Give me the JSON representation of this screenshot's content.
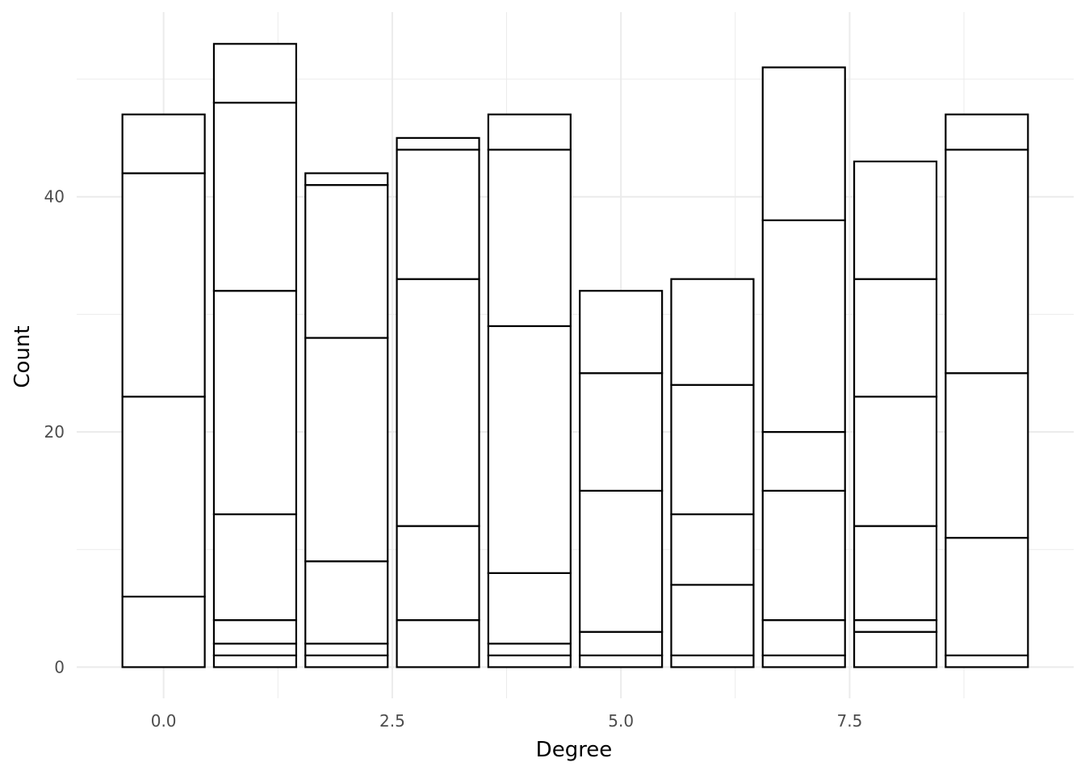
{
  "chart_data": {
    "type": "bar",
    "stacked": true,
    "title": "",
    "xlabel": "Degree",
    "ylabel": "Count",
    "x": [
      0,
      1,
      2,
      3,
      4,
      5,
      6,
      7,
      8,
      9
    ],
    "stack_boundaries": [
      [
        6,
        23,
        42,
        47
      ],
      [
        1,
        2,
        4,
        13,
        32,
        48,
        53
      ],
      [
        1,
        2,
        9,
        28,
        41,
        42
      ],
      [
        4,
        12,
        33,
        44,
        45
      ],
      [
        1,
        2,
        8,
        29,
        44,
        47
      ],
      [
        1,
        3,
        15,
        25,
        32
      ],
      [
        1,
        7,
        13,
        24,
        33
      ],
      [
        1,
        4,
        15,
        20,
        38,
        51
      ],
      [
        3,
        4,
        12,
        23,
        33,
        43
      ],
      [
        1,
        11,
        25,
        44,
        47
      ]
    ],
    "totals": [
      47,
      53,
      42,
      45,
      47,
      32,
      33,
      51,
      43,
      47
    ],
    "xlim": [
      -0.95,
      9.95
    ],
    "ylim": [
      -2.65,
      55.7
    ],
    "x_ticks": [
      0.0,
      2.5,
      5.0,
      7.5
    ],
    "x_tick_labels": [
      "0.0",
      "2.5",
      "5.0",
      "7.5"
    ],
    "y_ticks": [
      0,
      20,
      40
    ],
    "y_tick_labels": [
      "0",
      "20",
      "40"
    ],
    "bar_fill": "#ffffff",
    "bar_outline": "#000000",
    "grid": true,
    "legend": "none"
  }
}
